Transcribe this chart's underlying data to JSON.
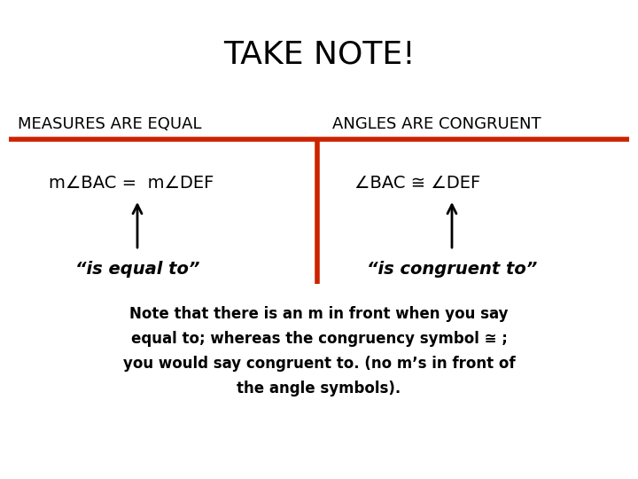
{
  "title": "TAKE NOTE!",
  "title_fontsize": 26,
  "title_fontweight": "normal",
  "bg_color": "#ffffff",
  "red_color": "#cc2200",
  "text_color": "#000000",
  "left_header": "MEASURES ARE EQUAL",
  "right_header": "ANGLES ARE CONGRUENT",
  "left_formula": "m∠BAC =  m∠DEF",
  "right_formula": "∠BAC ≅ ∠DEF",
  "left_label": "“is equal to”",
  "right_label": "“is congruent to”",
  "note_line1": "Note that there is an m in front when you say",
  "note_line2": "equal to; whereas the congruency symbol ≅ ;",
  "note_line3": "you would say congruent to. (no m’s in front of",
  "note_line4": "the angle symbols).",
  "header_fontsize": 13,
  "formula_fontsize": 14,
  "label_fontsize": 14,
  "note_fontsize": 12
}
